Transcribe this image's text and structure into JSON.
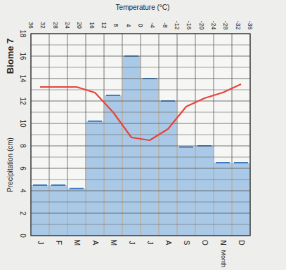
{
  "chart_data": {
    "type": "bar",
    "title": "Biome 7",
    "x_label": "Month",
    "y_label": "Precipitation (cm)",
    "y2_label": "Temperature (°C)",
    "categories": [
      "J",
      "F",
      "M",
      "A",
      "M",
      "J",
      "J",
      "A",
      "S",
      "O",
      "N",
      "D"
    ],
    "series": [
      {
        "type": "bar",
        "color": "#8fb9e3",
        "values": [
          4.5,
          4.5,
          4.2,
          10.2,
          12.5,
          16,
          14,
          12,
          7.9,
          8,
          6.5,
          6.5
        ]
      },
      {
        "type": "line",
        "color": "#e8433a",
        "axis": "y2",
        "values": [
          17,
          17,
          17,
          15,
          8,
          -1,
          -2,
          2,
          10,
          13,
          15,
          18
        ]
      }
    ],
    "ylim": [
      0,
      18
    ],
    "yticks": [
      0,
      2,
      4,
      6,
      8,
      10,
      12,
      14,
      16,
      18
    ],
    "y2lim": [
      -36,
      36
    ],
    "y2ticks": [
      36,
      32,
      28,
      24,
      20,
      16,
      12,
      8,
      4,
      0,
      -4,
      -8,
      -12,
      -16,
      -20,
      -24,
      -28,
      -32,
      -36
    ],
    "grid": true
  }
}
